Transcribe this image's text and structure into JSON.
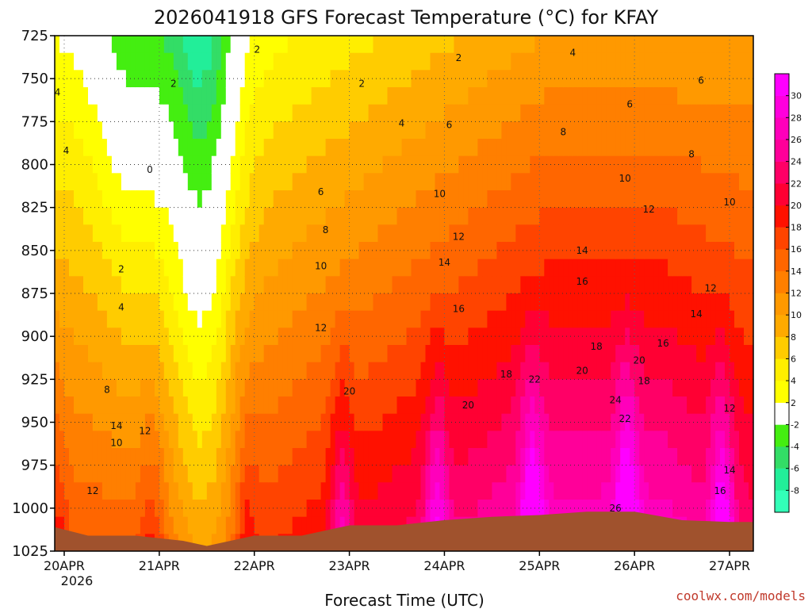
{
  "chart_data": {
    "type": "heatmap",
    "title": "2026041918 GFS Forecast Temperature (°C) for KFAY",
    "xlabel": "Forecast Time (UTC)",
    "ylabel": "",
    "credit": "coolwx.com/models",
    "y_axis": {
      "ticks": [
        "725",
        "750",
        "775",
        "800",
        "825",
        "850",
        "875",
        "900",
        "925",
        "950",
        "975",
        "1000",
        "1025"
      ],
      "range_hPa": [
        725,
        1025
      ],
      "inverted": true
    },
    "x_axis": {
      "ticks": [
        "20APR",
        "21APR",
        "22APR",
        "23APR",
        "24APR",
        "25APR",
        "26APR",
        "27APR"
      ],
      "year_label": "2026",
      "range_days": [
        19.9,
        27.25
      ]
    },
    "grid": true,
    "colorbar": {
      "placement": "right",
      "ticks": [
        "30",
        "28",
        "26",
        "24",
        "22",
        "20",
        "18",
        "16",
        "14",
        "12",
        "10",
        "8",
        "6",
        "4",
        "2",
        "-2",
        "-4",
        "-6",
        "-8"
      ],
      "bands": [
        {
          "min": -10,
          "max": -8,
          "color": "#33ffb8"
        },
        {
          "min": -8,
          "max": -6,
          "color": "#22ee99"
        },
        {
          "min": -6,
          "max": -4,
          "color": "#33dd66"
        },
        {
          "min": -4,
          "max": -2,
          "color": "#44ee11"
        },
        {
          "min": -2,
          "max": 2,
          "color": "#ffffff"
        },
        {
          "min": 2,
          "max": 4,
          "color": "#ffff00"
        },
        {
          "min": 4,
          "max": 6,
          "color": "#ffee00"
        },
        {
          "min": 6,
          "max": 8,
          "color": "#ffcc00"
        },
        {
          "min": 8,
          "max": 10,
          "color": "#ffaa00"
        },
        {
          "min": 10,
          "max": 12,
          "color": "#ff9900"
        },
        {
          "min": 12,
          "max": 14,
          "color": "#ff7f00"
        },
        {
          "min": 14,
          "max": 16,
          "color": "#ff6600"
        },
        {
          "min": 16,
          "max": 18,
          "color": "#ff4400"
        },
        {
          "min": 18,
          "max": 20,
          "color": "#ff1100"
        },
        {
          "min": 20,
          "max": 22,
          "color": "#ff0033"
        },
        {
          "min": 22,
          "max": 24,
          "color": "#ff0066"
        },
        {
          "min": 24,
          "max": 26,
          "color": "#ff0099"
        },
        {
          "min": 26,
          "max": 28,
          "color": "#ff00bb"
        },
        {
          "min": 28,
          "max": 30,
          "color": "#ff00dd"
        },
        {
          "min": 30,
          "max": 32,
          "color": "#ff00ff"
        }
      ]
    },
    "ground_color": "#a0522d",
    "surface_pressure": [
      {
        "t": 19.9,
        "p": 1011
      },
      {
        "t": 20.25,
        "p": 1016
      },
      {
        "t": 20.75,
        "p": 1016
      },
      {
        "t": 21.25,
        "p": 1019
      },
      {
        "t": 21.5,
        "p": 1022
      },
      {
        "t": 21.75,
        "p": 1019
      },
      {
        "t": 22.0,
        "p": 1016
      },
      {
        "t": 22.5,
        "p": 1016
      },
      {
        "t": 23.0,
        "p": 1010
      },
      {
        "t": 23.5,
        "p": 1010
      },
      {
        "t": 24.0,
        "p": 1007
      },
      {
        "t": 24.5,
        "p": 1005
      },
      {
        "t": 25.0,
        "p": 1004
      },
      {
        "t": 25.5,
        "p": 1002
      },
      {
        "t": 26.0,
        "p": 1002
      },
      {
        "t": 26.5,
        "p": 1007
      },
      {
        "t": 27.0,
        "p": 1008
      },
      {
        "t": 27.25,
        "p": 1008
      }
    ],
    "contour_labels": [
      {
        "text": "4",
        "t": 19.93,
        "p": 758
      },
      {
        "text": "4",
        "t": 20.02,
        "p": 792
      },
      {
        "text": "0",
        "t": 20.9,
        "p": 803
      },
      {
        "text": "2",
        "t": 21.15,
        "p": 753
      },
      {
        "text": "2",
        "t": 22.03,
        "p": 733
      },
      {
        "text": "2",
        "t": 23.13,
        "p": 753
      },
      {
        "text": "2",
        "t": 24.15,
        "p": 738
      },
      {
        "text": "4",
        "t": 25.35,
        "p": 735
      },
      {
        "text": "6",
        "t": 25.95,
        "p": 765
      },
      {
        "text": "6",
        "t": 26.7,
        "p": 751
      },
      {
        "text": "4",
        "t": 23.55,
        "p": 776
      },
      {
        "text": "6",
        "t": 24.05,
        "p": 777
      },
      {
        "text": "8",
        "t": 25.25,
        "p": 781
      },
      {
        "text": "8",
        "t": 26.6,
        "p": 794
      },
      {
        "text": "6",
        "t": 22.7,
        "p": 816
      },
      {
        "text": "10",
        "t": 23.95,
        "p": 817
      },
      {
        "text": "10",
        "t": 25.9,
        "p": 808
      },
      {
        "text": "12",
        "t": 26.15,
        "p": 826
      },
      {
        "text": "10",
        "t": 27.0,
        "p": 822
      },
      {
        "text": "8",
        "t": 22.75,
        "p": 838
      },
      {
        "text": "12",
        "t": 24.15,
        "p": 842
      },
      {
        "text": "14",
        "t": 25.45,
        "p": 850
      },
      {
        "text": "10",
        "t": 22.7,
        "p": 859
      },
      {
        "text": "14",
        "t": 24.0,
        "p": 857
      },
      {
        "text": "16",
        "t": 25.45,
        "p": 868
      },
      {
        "text": "12",
        "t": 26.8,
        "p": 872
      },
      {
        "text": "2",
        "t": 20.6,
        "p": 861
      },
      {
        "text": "4",
        "t": 20.6,
        "p": 883
      },
      {
        "text": "16",
        "t": 24.15,
        "p": 884
      },
      {
        "text": "12",
        "t": 22.7,
        "p": 895
      },
      {
        "text": "14",
        "t": 26.65,
        "p": 887
      },
      {
        "text": "16",
        "t": 26.3,
        "p": 904
      },
      {
        "text": "18",
        "t": 25.6,
        "p": 906
      },
      {
        "text": "8",
        "t": 20.45,
        "p": 931
      },
      {
        "text": "20",
        "t": 23.0,
        "p": 932
      },
      {
        "text": "18",
        "t": 24.65,
        "p": 922
      },
      {
        "text": "22",
        "t": 24.95,
        "p": 925
      },
      {
        "text": "20",
        "t": 25.45,
        "p": 920
      },
      {
        "text": "20",
        "t": 26.05,
        "p": 914
      },
      {
        "text": "18",
        "t": 26.1,
        "p": 926
      },
      {
        "text": "24",
        "t": 25.8,
        "p": 937
      },
      {
        "text": "20",
        "t": 24.25,
        "p": 940
      },
      {
        "text": "22",
        "t": 25.9,
        "p": 948
      },
      {
        "text": "12",
        "t": 27.0,
        "p": 942
      },
      {
        "text": "14",
        "t": 20.55,
        "p": 952
      },
      {
        "text": "12",
        "t": 20.85,
        "p": 955
      },
      {
        "text": "10",
        "t": 20.55,
        "p": 962
      },
      {
        "text": "14",
        "t": 27.0,
        "p": 978
      },
      {
        "text": "12",
        "t": 20.3,
        "p": 990
      },
      {
        "text": "16",
        "t": 26.9,
        "p": 990
      },
      {
        "text": "26",
        "t": 25.8,
        "p": 1000
      }
    ]
  }
}
